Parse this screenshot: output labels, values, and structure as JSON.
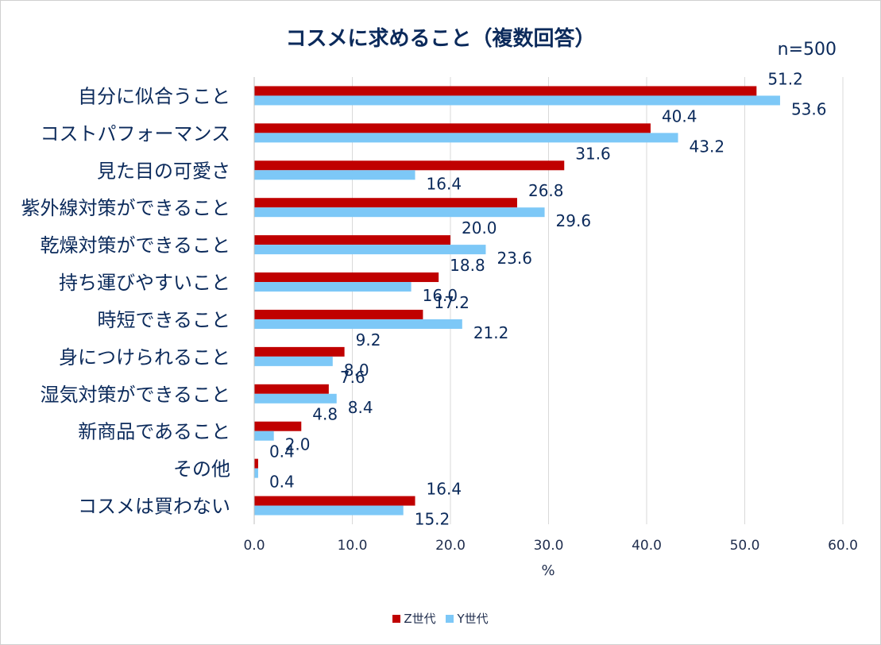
{
  "chart_data": {
    "type": "bar",
    "orientation": "horizontal",
    "title": "コスメに求めること（複数回答）",
    "sample_size": "n=500",
    "xlabel": "%",
    "xlim": [
      0,
      60
    ],
    "xticks": [
      "0.0",
      "10.0",
      "20.0",
      "30.0",
      "40.0",
      "50.0",
      "60.0"
    ],
    "grid": true,
    "legend_position": "bottom",
    "categories": [
      "自分に似合うこと",
      "コストパフォーマンス",
      "見た目の可愛さ",
      "紫外線対策ができること",
      "乾燥対策ができること",
      "持ち運びやすいこと",
      "時短できること",
      "身につけられること",
      "湿気対策ができること",
      "新商品であること",
      "その他",
      "コスメは買わない"
    ],
    "series": [
      {
        "name": "Z世代",
        "color": "#c00000",
        "values": [
          51.2,
          40.4,
          31.6,
          26.8,
          20.0,
          18.8,
          17.2,
          9.2,
          7.6,
          4.8,
          0.4,
          16.4
        ],
        "labels": [
          "51.2",
          "40.4",
          "31.6",
          "26.8",
          "20.0",
          "18.8",
          "17.2",
          "9.2",
          "7.6",
          "4.8",
          "0.4",
          "16.4"
        ]
      },
      {
        "name": "Y世代",
        "color": "#7dc8f7",
        "values": [
          53.6,
          43.2,
          16.4,
          29.6,
          23.6,
          16.0,
          21.2,
          8.0,
          8.4,
          2.0,
          0.4,
          15.2
        ],
        "labels": [
          "53.6",
          "43.2",
          "16.4",
          "29.6",
          "23.6",
          "16.0",
          "21.2",
          "8.0",
          "8.4",
          "2.0",
          "0.4",
          "15.2"
        ]
      }
    ]
  }
}
